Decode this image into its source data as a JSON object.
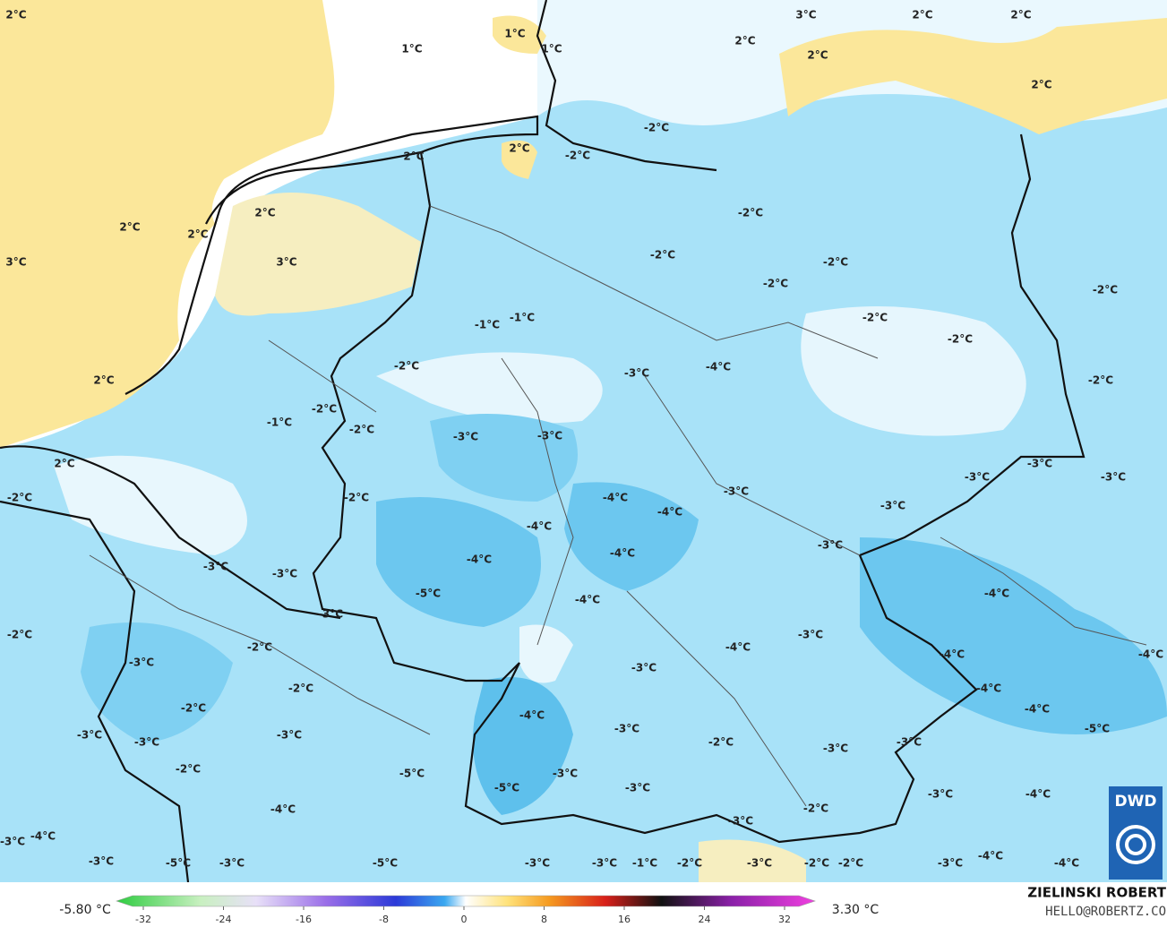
{
  "map_labels": [
    "2°C",
    "1°C",
    "1°C",
    "1°C",
    "3°C",
    "2°C",
    "2°C",
    "2°C",
    "2°C",
    "2°C",
    "-2°C",
    "2°C",
    "-2°C",
    "2°C",
    "2°C",
    "2°C",
    "2°C",
    "3°C",
    "3°C",
    "-2°C",
    "-2°C",
    "-2°C",
    "-2°C",
    "-2°C",
    "-1°C",
    "-1°C",
    "-2°C",
    "-2°C",
    "2°C",
    "-2°C",
    "-3°C",
    "-4°C",
    "-2°C",
    "-2°C",
    "-1°C",
    "-2°C",
    "-3°C",
    "-3°C",
    "2°C",
    "-3°C",
    "-3°C",
    "-3°C",
    "-2°C",
    "-2°C",
    "-4°C",
    "-3°C",
    "-3°C",
    "-4°C",
    "-4°C",
    "-3°C",
    "-3°C",
    "-3°C",
    "-4°C",
    "-4°C",
    "-5°C",
    "-4°C",
    "-4°C",
    "-3°C",
    "-2°C",
    "-3°C",
    "-2°C",
    "-3°C",
    "-4°C",
    "-3°C",
    "-4°C",
    "-4°C",
    "-2°C",
    "-4°C",
    "-2°C",
    "-4°C",
    "-4°C",
    "-3°C",
    "-5°C",
    "-3°C",
    "-3°C",
    "-3°C",
    "-2°C",
    "-3°C",
    "-3°C",
    "-2°C",
    "-5°C",
    "-3°C",
    "-5°C",
    "-3°C",
    "-3°C",
    "-4°C",
    "-4°C",
    "-2°C",
    "-3°C",
    "-4°C",
    "-3°C",
    "-3°C",
    "-5°C",
    "-3°C",
    "-5°C",
    "-3°C",
    "-3°C",
    "-1°C",
    "-2°C",
    "-3°C",
    "-2°C",
    "-2°C",
    "-3°C",
    "-4°C",
    "-4°C"
  ],
  "colorbar": {
    "min_label": "-5.80 °C",
    "max_label": "3.30 °C",
    "ticks": [
      -32,
      -24,
      -16,
      -8,
      0,
      8,
      16,
      24,
      32
    ]
  },
  "credit": {
    "author": "ZIELINSKI ROBERT",
    "email": "HELLO@ROBERTZ.CO"
  },
  "logo": "DWD"
}
